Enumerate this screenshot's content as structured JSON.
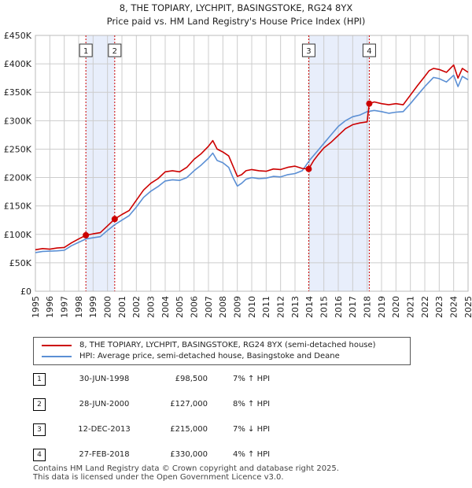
{
  "colors": {
    "price": "#cc0000",
    "hpi": "#5b8fd4",
    "shade": "#e8eefb",
    "grid": "#cccccc",
    "marker_line": "#cc0000"
  },
  "chart_data": {
    "type": "line",
    "title": "8, THE TOPIARY, LYCHPIT, BASINGSTOKE, RG24 8YX",
    "subtitle": "Price paid vs. HM Land Registry's House Price Index (HPI)",
    "xlabel": "",
    "ylabel": "",
    "xlim": [
      1995,
      2025
    ],
    "ylim": [
      0,
      450000
    ],
    "x_ticks": [
      1995,
      1996,
      1997,
      1998,
      1999,
      2000,
      2001,
      2002,
      2003,
      2004,
      2005,
      2006,
      2007,
      2008,
      2009,
      2010,
      2011,
      2012,
      2013,
      2014,
      2015,
      2016,
      2017,
      2018,
      2019,
      2020,
      2021,
      2022,
      2023,
      2024,
      2025
    ],
    "x_tick_labels": [
      "1995",
      "1996",
      "1997",
      "1998",
      "1999",
      "2000",
      "2001",
      "2002",
      "2003",
      "2004",
      "2005",
      "2006",
      "2007",
      "2008",
      "2009",
      "2010",
      "2011",
      "2012",
      "2013",
      "2014",
      "2015",
      "2016",
      "2017",
      "2018",
      "2019",
      "2020",
      "2021",
      "2022",
      "2023",
      "2024",
      "2025"
    ],
    "y_ticks": [
      0,
      50000,
      100000,
      150000,
      200000,
      250000,
      300000,
      350000,
      400000,
      450000
    ],
    "y_tick_labels": [
      "£0",
      "£50K",
      "£100K",
      "£150K",
      "£200K",
      "£250K",
      "£300K",
      "£350K",
      "£400K",
      "£450K"
    ],
    "grid": true,
    "shaded_regions": [
      [
        1998.5,
        2000.5
      ],
      [
        2013.95,
        2018.15
      ]
    ],
    "series": [
      {
        "name": "8, THE TOPIARY, LYCHPIT, BASINGSTOKE, RG24 8YX (semi-detached house)",
        "x": [
          1995.0,
          1995.5,
          1996.0,
          1996.5,
          1997.0,
          1997.5,
          1998.0,
          1998.5,
          1999.0,
          1999.5,
          2000.0,
          2000.5,
          2001.0,
          2001.5,
          2002.0,
          2002.5,
          2003.0,
          2003.5,
          2004.0,
          2004.5,
          2005.0,
          2005.5,
          2006.0,
          2006.5,
          2007.0,
          2007.3,
          2007.6,
          2008.0,
          2008.4,
          2008.7,
          2009.0,
          2009.3,
          2009.6,
          2010.0,
          2010.5,
          2011.0,
          2011.5,
          2012.0,
          2012.5,
          2013.0,
          2013.5,
          2013.95,
          2014.3,
          2014.6,
          2015.0,
          2015.5,
          2016.0,
          2016.5,
          2017.0,
          2017.5,
          2018.0,
          2018.15,
          2018.5,
          2019.0,
          2019.5,
          2020.0,
          2020.5,
          2021.0,
          2021.5,
          2022.0,
          2022.3,
          2022.6,
          2023.0,
          2023.5,
          2024.0,
          2024.3,
          2024.6,
          2025.0
        ],
        "values": [
          73000,
          75000,
          74000,
          76000,
          77000,
          85000,
          92000,
          98500,
          101000,
          103000,
          115000,
          127000,
          135000,
          142000,
          160000,
          178000,
          190000,
          198000,
          210000,
          212000,
          210000,
          218000,
          232000,
          242000,
          255000,
          265000,
          250000,
          245000,
          238000,
          220000,
          202000,
          205000,
          212000,
          214000,
          212000,
          211000,
          215000,
          214000,
          218000,
          220000,
          216000,
          215000,
          230000,
          240000,
          252000,
          262000,
          274000,
          286000,
          293000,
          296000,
          298000,
          330000,
          333000,
          330000,
          328000,
          330000,
          328000,
          345000,
          362000,
          378000,
          388000,
          392000,
          390000,
          385000,
          398000,
          375000,
          392000,
          385000
        ]
      },
      {
        "name": "HPI: Average price, semi-detached house, Basingstoke and Deane",
        "x": [
          1995.0,
          1995.5,
          1996.0,
          1996.5,
          1997.0,
          1997.5,
          1998.0,
          1998.5,
          1999.0,
          1999.5,
          2000.0,
          2000.5,
          2001.0,
          2001.5,
          2002.0,
          2002.5,
          2003.0,
          2003.5,
          2004.0,
          2004.5,
          2005.0,
          2005.5,
          2006.0,
          2006.5,
          2007.0,
          2007.3,
          2007.6,
          2008.0,
          2008.4,
          2008.7,
          2009.0,
          2009.3,
          2009.6,
          2010.0,
          2010.5,
          2011.0,
          2011.5,
          2012.0,
          2012.5,
          2013.0,
          2013.5,
          2014.0,
          2014.5,
          2015.0,
          2015.5,
          2016.0,
          2016.5,
          2017.0,
          2017.5,
          2018.0,
          2018.5,
          2019.0,
          2019.5,
          2020.0,
          2020.5,
          2021.0,
          2021.5,
          2022.0,
          2022.3,
          2022.6,
          2023.0,
          2023.5,
          2024.0,
          2024.3,
          2024.6,
          2025.0
        ],
        "values": [
          68000,
          70000,
          70500,
          71000,
          72000,
          80000,
          86000,
          92000,
          94000,
          96000,
          107000,
          117000,
          125000,
          133000,
          148000,
          165000,
          176000,
          184000,
          194000,
          196000,
          195000,
          200000,
          212000,
          222000,
          234000,
          243000,
          230000,
          226000,
          218000,
          200000,
          185000,
          190000,
          197000,
          200000,
          198000,
          199000,
          202000,
          201000,
          205000,
          207000,
          212000,
          230000,
          245000,
          260000,
          275000,
          290000,
          300000,
          307000,
          310000,
          316000,
          318000,
          316000,
          313000,
          315000,
          316000,
          330000,
          345000,
          360000,
          368000,
          376000,
          374000,
          368000,
          380000,
          360000,
          378000,
          372000
        ]
      }
    ],
    "annotations": [
      {
        "label": "1",
        "x": 1998.5,
        "y": 98500
      },
      {
        "label": "2",
        "x": 2000.5,
        "y": 127000
      },
      {
        "label": "3",
        "x": 2013.95,
        "y": 215000
      },
      {
        "label": "4",
        "x": 2018.15,
        "y": 330000
      }
    ]
  },
  "legend": {
    "price_label": "8, THE TOPIARY, LYCHPIT, BASINGSTOKE, RG24 8YX (semi-detached house)",
    "hpi_label": "HPI: Average price, semi-detached house, Basingstoke and Deane"
  },
  "transactions": [
    {
      "num": "1",
      "date": "30-JUN-1998",
      "price": "£98,500",
      "hpi": "7% ↑ HPI"
    },
    {
      "num": "2",
      "date": "28-JUN-2000",
      "price": "£127,000",
      "hpi": "8% ↑ HPI"
    },
    {
      "num": "3",
      "date": "12-DEC-2013",
      "price": "£215,000",
      "hpi": "7% ↓ HPI"
    },
    {
      "num": "4",
      "date": "27-FEB-2018",
      "price": "£330,000",
      "hpi": "4% ↑ HPI"
    }
  ],
  "footer": {
    "line1": "Contains HM Land Registry data © Crown copyright and database right 2025.",
    "line2": "This data is licensed under the Open Government Licence v3.0."
  }
}
